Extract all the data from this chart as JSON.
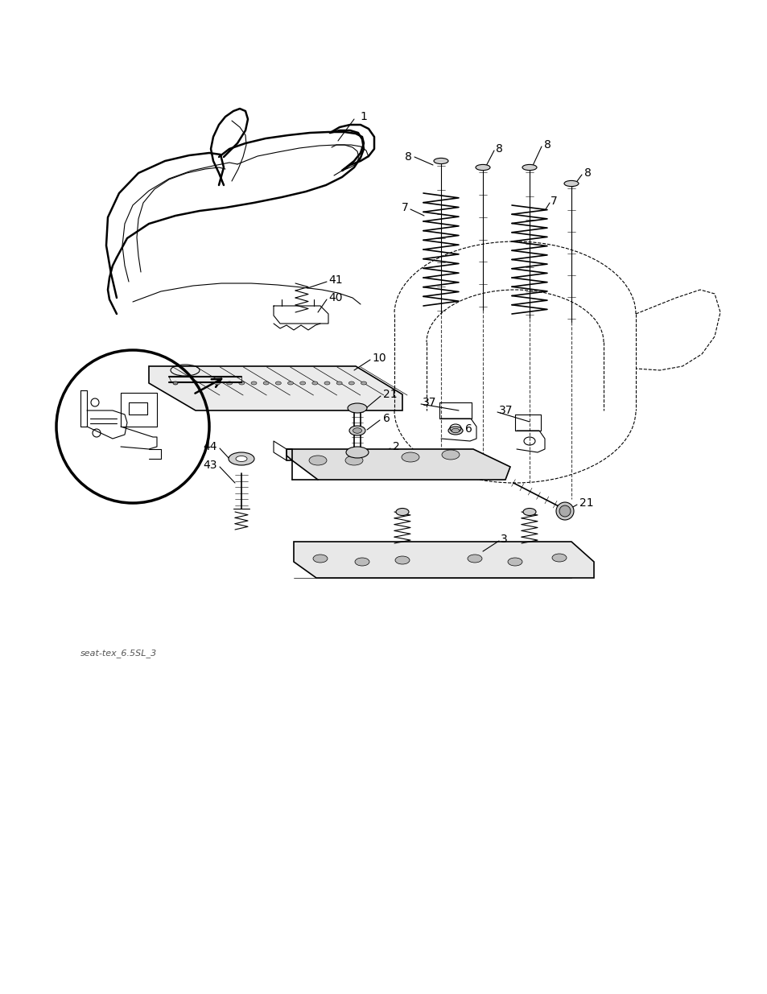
{
  "background_color": "#ffffff",
  "line_color": "#000000",
  "caption_text": "seat-tex_6.5SL_3",
  "fig_width": 9.54,
  "fig_height": 12.35,
  "dpi": 100
}
